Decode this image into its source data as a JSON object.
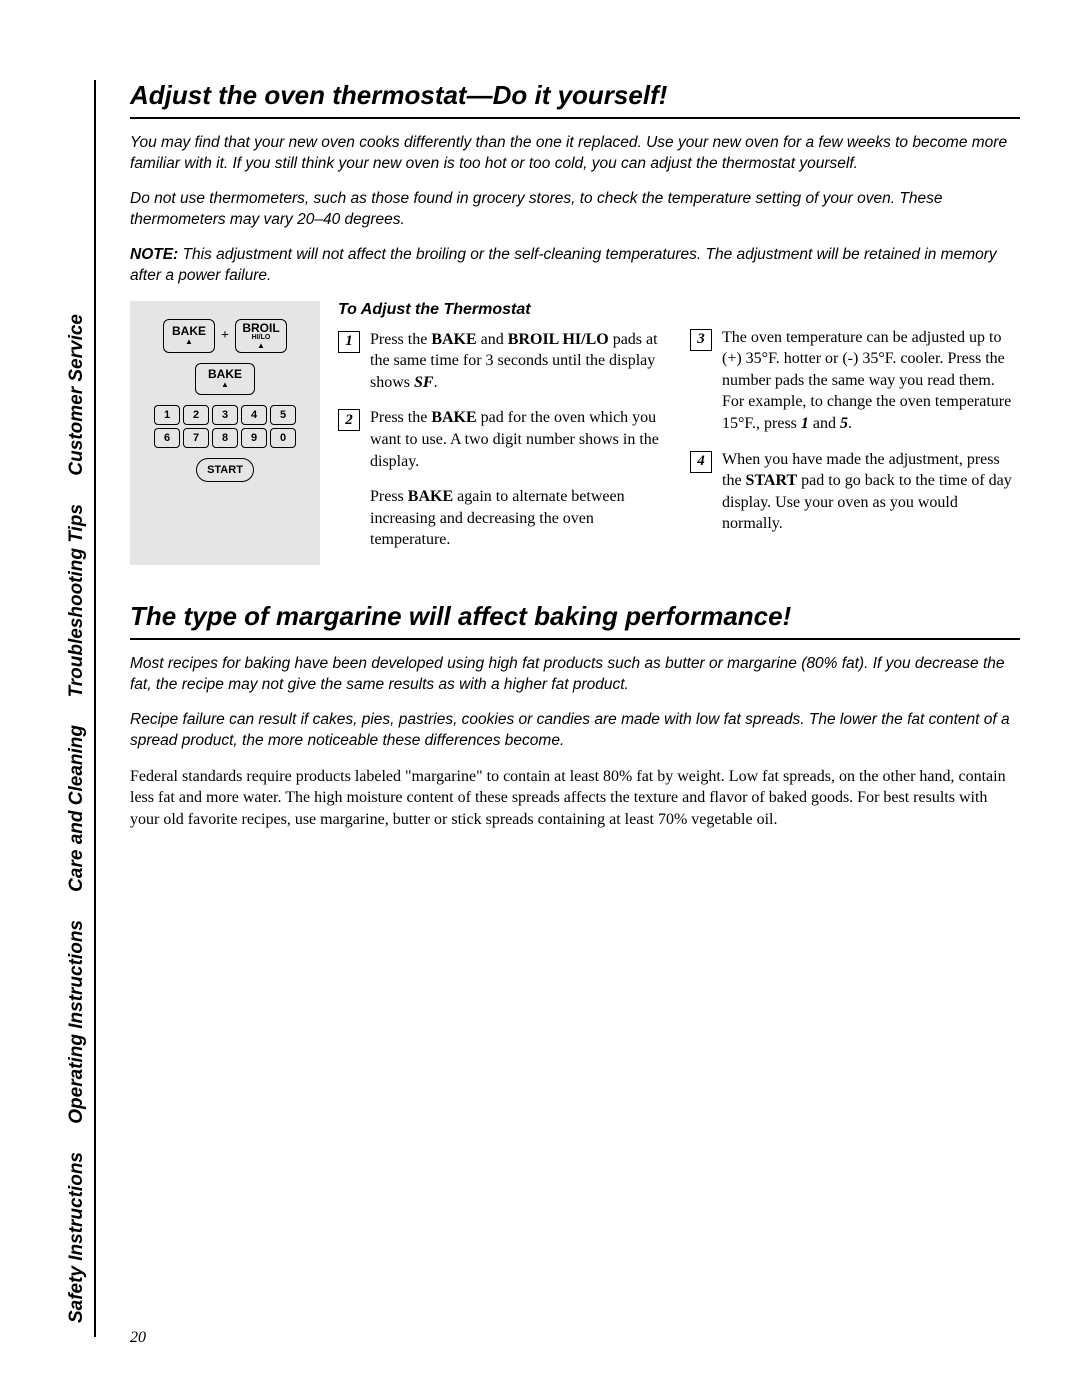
{
  "sidebar": {
    "items": [
      "Customer Service",
      "Troubleshooting Tips",
      "Care and Cleaning",
      "Operating Instructions",
      "Safety Instructions"
    ]
  },
  "section1": {
    "title": "Adjust the oven thermostat—Do it yourself!",
    "para1": "You may find that your new oven cooks differently than the one it replaced. Use your new oven for a few weeks to become more familiar with it. If you still think your new oven is too hot or too cold, you can adjust the thermostat yourself.",
    "para2": "Do not use thermometers, such as those found in grocery stores, to check the temperature setting of your oven. These thermometers may vary 20–40 degrees.",
    "note_label": "NOTE:",
    "note_text": " This adjustment will not affect the broiling or the self-cleaning temperatures. The adjustment will be retained in memory after a power failure.",
    "subheading": "To Adjust the Thermostat",
    "panel": {
      "bake": "BAKE",
      "plus": "+",
      "broil": "BROIL",
      "broil_sub": "HI/LO",
      "bake2": "BAKE",
      "numbers": [
        "1",
        "2",
        "3",
        "4",
        "5",
        "6",
        "7",
        "8",
        "9",
        "0"
      ],
      "start": "START"
    },
    "steps_left": [
      {
        "n": "1",
        "html": "Press the <b>BAKE</b> and <b>BROIL HI/LO</b> pads at the same time for 3 seconds until the display shows <b><i>SF</i></b>."
      },
      {
        "n": "2",
        "html": "Press the <b>BAKE</b> pad for the oven which you want to use. A two digit number shows in the display."
      }
    ],
    "cont_left": "Press <b>BAKE</b> again to alternate between increasing and decreasing the oven temperature.",
    "steps_right": [
      {
        "n": "3",
        "html": "The oven temperature can be adjusted up to (+) 35°F. hotter or (-) 35°F. cooler. Press the number pads the same way you read them. For example, to change the oven temperature 15°F., press <b><i>1</i></b> and <b><i>5</i></b>."
      },
      {
        "n": "4",
        "html": "When you have made the adjustment, press the <b>START</b> pad to go back to the time of day display. Use your oven as you would normally."
      }
    ]
  },
  "section2": {
    "title": "The type of margarine will affect baking performance!",
    "para1": "Most recipes for baking have been developed using high fat products such as butter or margarine (80% fat). If you decrease the fat, the recipe may not give the same results as with a higher fat product.",
    "para2": "Recipe failure can result if cakes, pies, pastries, cookies or candies are made with low fat spreads. The lower the fat content of a spread product, the more noticeable these differences become.",
    "para3": "Federal standards require products labeled \"margarine\" to contain at least 80% fat by weight. Low fat spreads, on the other hand, contain less fat and more water. The high moisture content of these spreads affects the texture and flavor of baked goods. For best results with your old favorite recipes, use margarine, butter or stick spreads containing at least 70% vegetable oil."
  },
  "page_number": "20"
}
